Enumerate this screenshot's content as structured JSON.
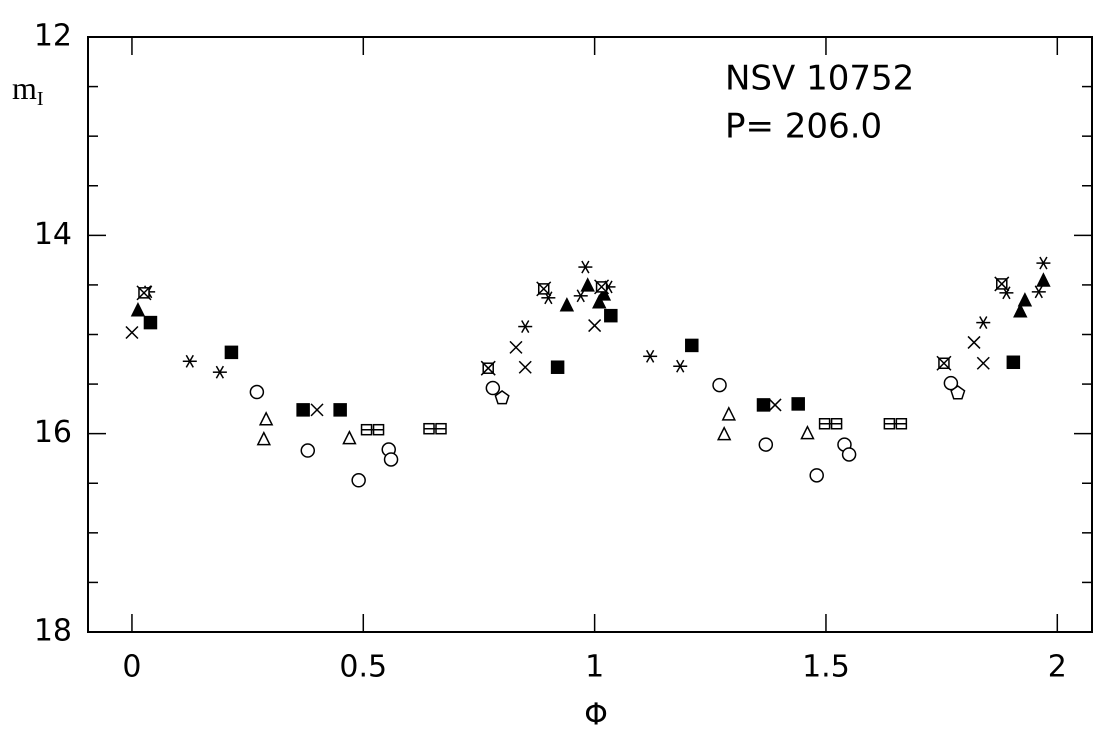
{
  "chart_data": {
    "type": "scatter",
    "annotations": [
      "NSV 10752",
      "P= 206.0"
    ],
    "xlabel": "Φ",
    "ylabel": "m",
    "ylabel_subscript": "I",
    "xlim": [
      -0.095,
      2.075
    ],
    "ylim": [
      18,
      12
    ],
    "xticks": [
      0,
      0.5,
      1,
      1.5,
      2
    ],
    "yticks": [
      12,
      14,
      16,
      18
    ],
    "yticks_minor": [
      12.5,
      13,
      13.5,
      14.5,
      15,
      15.5,
      16.5,
      17,
      17.5
    ],
    "color": "#000000",
    "series": [
      {
        "marker": "cross",
        "filled": false,
        "x": [
          0.0,
          0.4,
          0.83,
          0.85,
          1.0,
          1.39,
          1.82,
          1.84
        ],
        "values": [
          14.98,
          15.76,
          15.13,
          15.33,
          14.91,
          15.71,
          15.08,
          15.29
        ]
      },
      {
        "marker": "asterisk",
        "filled": false,
        "x": [
          0.035,
          0.125,
          0.19,
          0.85,
          0.9,
          0.98,
          0.97,
          1.03,
          1.12,
          1.185,
          1.84,
          1.89,
          1.97,
          1.96
        ],
        "values": [
          14.57,
          15.27,
          15.38,
          14.92,
          14.63,
          14.32,
          14.61,
          14.52,
          15.22,
          15.32,
          14.88,
          14.58,
          14.28,
          14.57
        ]
      },
      {
        "marker": "square",
        "filled": true,
        "x": [
          0.04,
          0.215,
          0.37,
          0.45,
          0.92,
          1.035,
          1.21,
          1.365,
          1.44,
          1.905
        ],
        "values": [
          14.88,
          15.18,
          15.76,
          15.76,
          15.33,
          14.81,
          15.11,
          15.71,
          15.7,
          15.28
        ]
      },
      {
        "marker": "triangle",
        "filled": true,
        "x": [
          0.013,
          0.94,
          0.985,
          1.01,
          1.02,
          1.92,
          1.93,
          1.97
        ],
        "values": [
          14.76,
          14.71,
          14.51,
          14.68,
          14.6,
          14.77,
          14.66,
          14.46
        ]
      },
      {
        "marker": "triangle",
        "filled": false,
        "x": [
          0.29,
          0.285,
          0.47,
          1.29,
          1.28,
          1.46
        ],
        "values": [
          15.86,
          16.06,
          16.05,
          15.81,
          16.01,
          16.0
        ]
      },
      {
        "marker": "circle",
        "filled": false,
        "x": [
          0.27,
          0.38,
          0.49,
          0.555,
          0.56,
          0.78,
          1.27,
          1.37,
          1.48,
          1.54,
          1.55,
          1.77
        ],
        "values": [
          15.58,
          16.17,
          16.47,
          16.16,
          16.26,
          15.54,
          15.51,
          16.11,
          16.42,
          16.11,
          16.21,
          15.49
        ]
      },
      {
        "marker": "pentagon",
        "filled": false,
        "x": [
          0.8,
          1.785
        ],
        "values": [
          15.64,
          15.59
        ]
      },
      {
        "marker": "double-square",
        "filled": false,
        "x": [
          0.52,
          0.655,
          1.51,
          1.65
        ],
        "values": [
          15.96,
          15.95,
          15.9,
          15.9
        ]
      },
      {
        "marker": "star-square",
        "filled": false,
        "x": [
          0.026,
          0.77,
          0.89,
          1.015,
          1.755,
          1.88
        ],
        "values": [
          14.58,
          15.34,
          14.54,
          14.52,
          15.29,
          14.49
        ]
      }
    ]
  }
}
